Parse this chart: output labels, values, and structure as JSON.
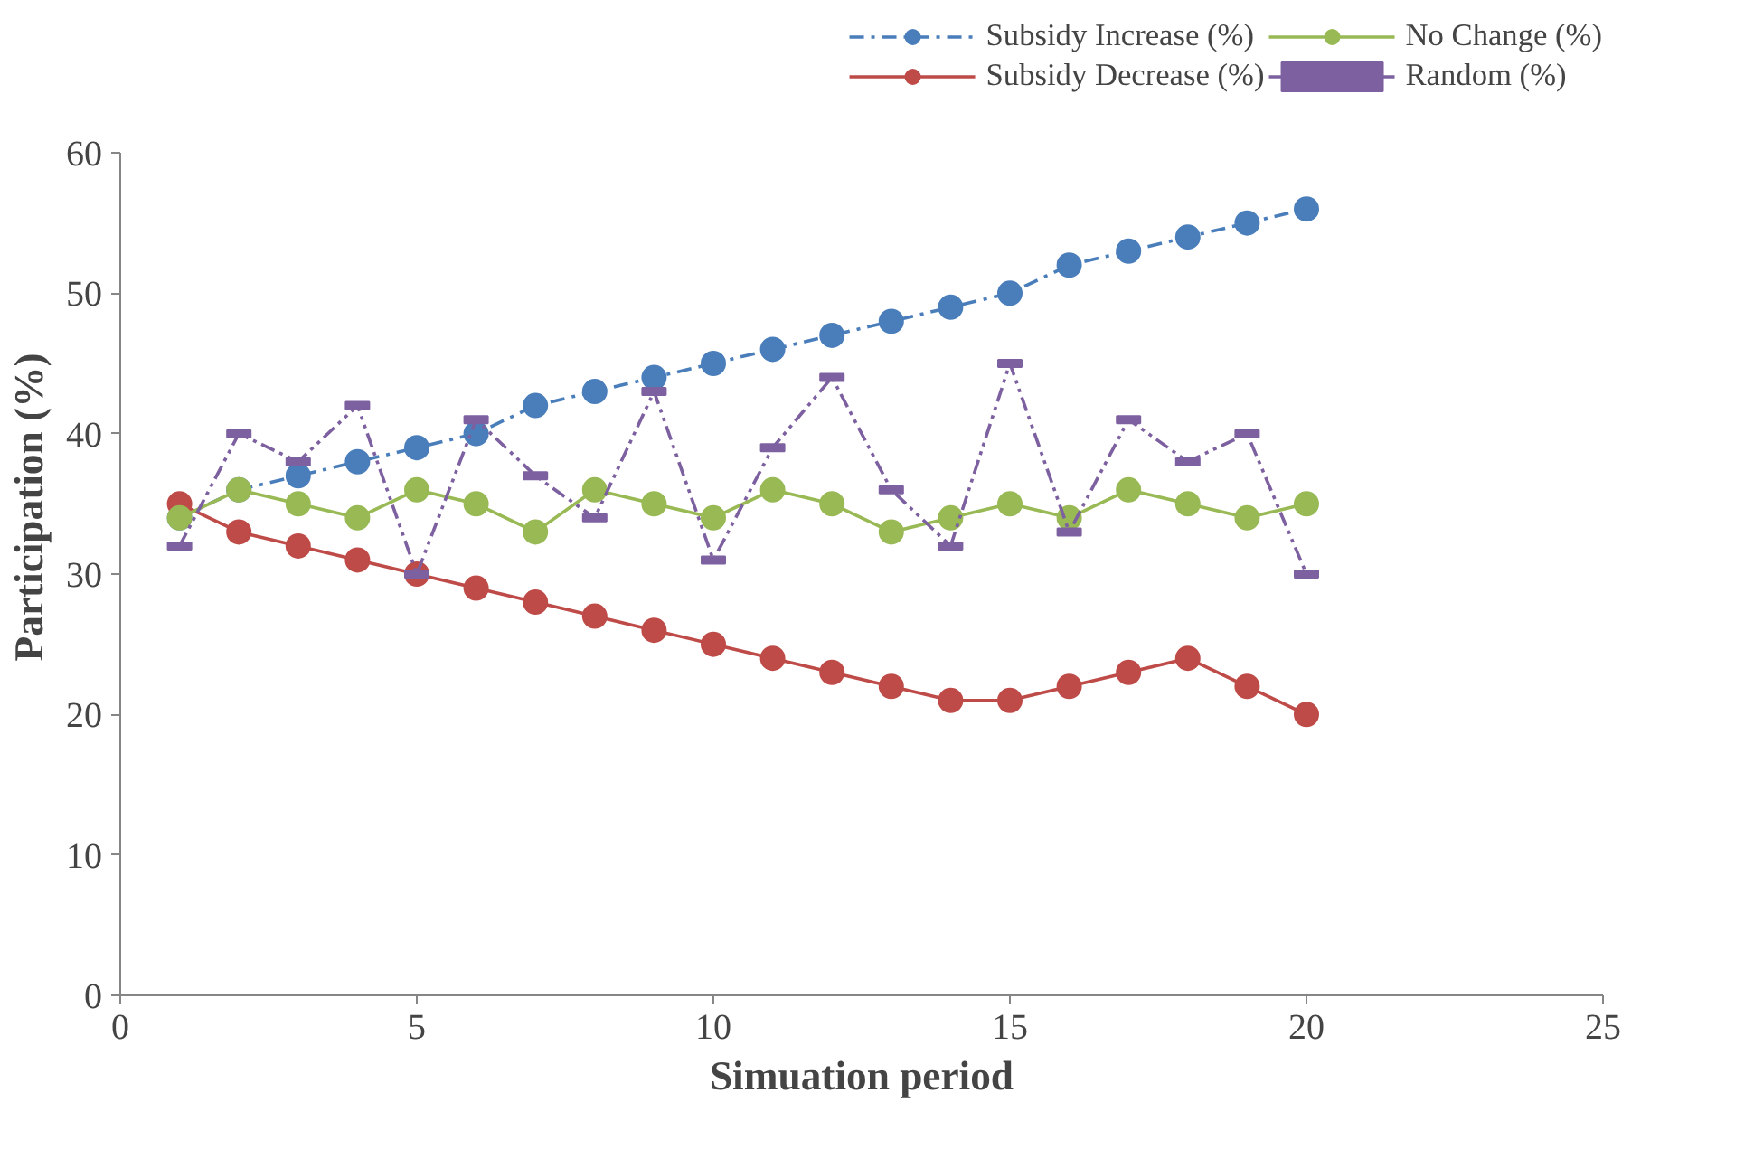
{
  "chart_data": {
    "type": "line",
    "xlabel": "Simuation period",
    "ylabel": "Participation (%)",
    "x": [
      1,
      2,
      3,
      4,
      5,
      6,
      7,
      8,
      9,
      10,
      11,
      12,
      13,
      14,
      15,
      16,
      17,
      18,
      19,
      20
    ],
    "xlim": [
      0,
      25
    ],
    "xticks": [
      0,
      5,
      10,
      15,
      20,
      25
    ],
    "ylim": [
      0,
      60
    ],
    "yticks": [
      0,
      10,
      20,
      30,
      40,
      50,
      60
    ],
    "grid": false,
    "legend": "top",
    "series": [
      {
        "name": "Subsidy Increase (%)",
        "color": "#4a7ebb",
        "marker": "circle",
        "line_style": "dashdot",
        "values": [
          34,
          36,
          37,
          38,
          39,
          40,
          42,
          43,
          44,
          45,
          46,
          47,
          48,
          49,
          50,
          52,
          53,
          54,
          55,
          56
        ]
      },
      {
        "name": "Subsidy Decrease (%)",
        "color": "#be4b48",
        "marker": "circle",
        "line_style": "solid",
        "values": [
          35,
          33,
          32,
          31,
          30,
          29,
          28,
          27,
          26,
          25,
          24,
          23,
          22,
          21,
          21,
          22,
          23,
          24,
          22,
          20
        ]
      },
      {
        "name": "No Change (%)",
        "color": "#98b954",
        "marker": "circle",
        "line_style": "solid",
        "values": [
          34,
          36,
          35,
          34,
          36,
          35,
          33,
          36,
          35,
          34,
          36,
          35,
          33,
          34,
          35,
          34,
          36,
          35,
          34,
          35
        ]
      },
      {
        "name": "Random (%)",
        "color": "#7d60a0",
        "marker": "square",
        "line_style": "dashdotdot",
        "values": [
          32,
          40,
          38,
          42,
          30,
          41,
          37,
          34,
          43,
          31,
          39,
          44,
          36,
          32,
          45,
          33,
          41,
          38,
          40,
          30
        ]
      }
    ]
  }
}
